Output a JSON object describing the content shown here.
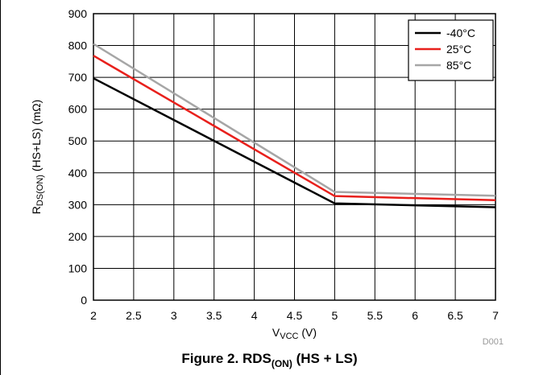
{
  "caption": {
    "main": "Figure 2. RDS",
    "sub": "(ON)",
    "tail": " (HS + LS)"
  },
  "chart_data": {
    "type": "line",
    "xlabel": {
      "main": "V",
      "sub": "VCC",
      "tail": " (V)"
    },
    "ylabel": {
      "main": "R",
      "sub": "DS(ON)",
      "tail": " (HS+LS) (mΩ)"
    },
    "xlim": [
      2,
      7
    ],
    "ylim": [
      0,
      900
    ],
    "xticks": [
      2,
      2.5,
      3,
      3.5,
      4,
      4.5,
      5,
      5.5,
      6,
      6.5,
      7
    ],
    "yticks": [
      0,
      100,
      200,
      300,
      400,
      500,
      600,
      700,
      800,
      900
    ],
    "grid": true,
    "legend_position": "top-right",
    "note": "D001",
    "colors": {
      "axis": "#000000",
      "grid": "#000000"
    },
    "series": [
      {
        "name": "-40°C",
        "color": "#000000",
        "x": [
          2,
          5,
          7
        ],
        "y": [
          697,
          304,
          292
        ]
      },
      {
        "name": "25°C",
        "color": "#e8201c",
        "x": [
          2,
          5,
          7
        ],
        "y": [
          768,
          327,
          314
        ]
      },
      {
        "name": "85°C",
        "color": "#a6a6a6",
        "x": [
          2,
          5,
          7
        ],
        "y": [
          805,
          340,
          328
        ]
      }
    ]
  }
}
